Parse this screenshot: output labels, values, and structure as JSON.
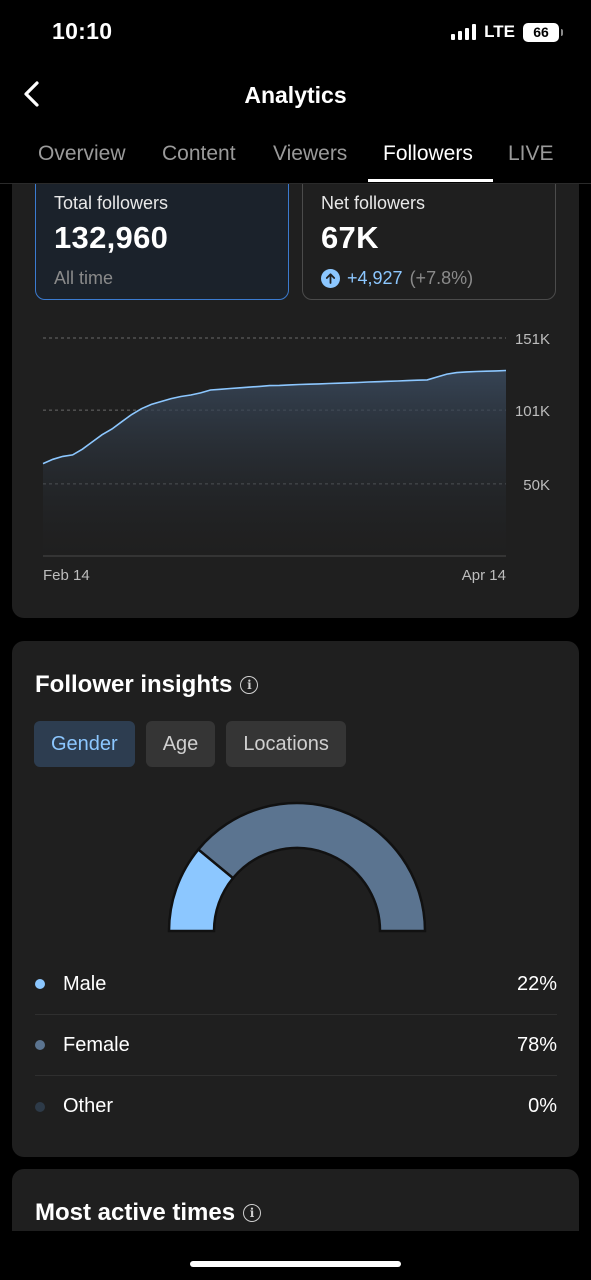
{
  "status": {
    "time": "10:10",
    "network": "LTE",
    "battery": "66"
  },
  "header": {
    "title": "Analytics",
    "back_icon": "chevron-left-icon"
  },
  "tabs": [
    {
      "label": "Overview",
      "active": false
    },
    {
      "label": "Content",
      "active": false
    },
    {
      "label": "Viewers",
      "active": false
    },
    {
      "label": "Followers",
      "active": true
    },
    {
      "label": "LIVE",
      "active": false
    }
  ],
  "stats": {
    "total": {
      "label": "Total followers",
      "value": "132,960",
      "sub": "All time"
    },
    "net": {
      "label": "Net followers",
      "value": "67K",
      "change": "+4,927",
      "change_pct": "(+7.8%)"
    }
  },
  "chart_data": {
    "type": "area",
    "x_tick_labels": [
      "Feb 14",
      "Apr 14"
    ],
    "y_tick_labels": [
      "151K",
      "101K",
      "50K"
    ],
    "y_ticks": [
      151000,
      101000,
      50000
    ],
    "ylim": [
      0,
      151000
    ],
    "grid": true,
    "series": [
      {
        "values": [
          64000,
          67000,
          69000,
          70000,
          74000,
          79000,
          84000,
          88000,
          93000,
          98000,
          102000,
          105000,
          107000,
          109000,
          110500,
          111500,
          113000,
          115000,
          115500,
          116000,
          116500,
          117000,
          117500,
          118000,
          118200,
          118500,
          118800,
          119000,
          119200,
          119500,
          119700,
          120000,
          120200,
          120500,
          120700,
          121000,
          121200,
          121500,
          121800,
          122000,
          124000,
          126000,
          127000,
          127500,
          127800,
          128000,
          128200,
          128500
        ]
      }
    ],
    "color": "#8cc7ff"
  },
  "insights": {
    "title": "Follower insights",
    "filters": [
      {
        "label": "Gender",
        "active": true
      },
      {
        "label": "Age",
        "active": false
      },
      {
        "label": "Locations",
        "active": false
      }
    ],
    "gender": [
      {
        "label": "Male",
        "value": "22%",
        "pct": 22,
        "color": "#8cc7ff"
      },
      {
        "label": "Female",
        "value": "78%",
        "pct": 78,
        "color": "#5b7490"
      },
      {
        "label": "Other",
        "value": "0%",
        "pct": 0,
        "color": "#2d3a48"
      }
    ]
  },
  "active_times": {
    "title": "Most active times"
  }
}
